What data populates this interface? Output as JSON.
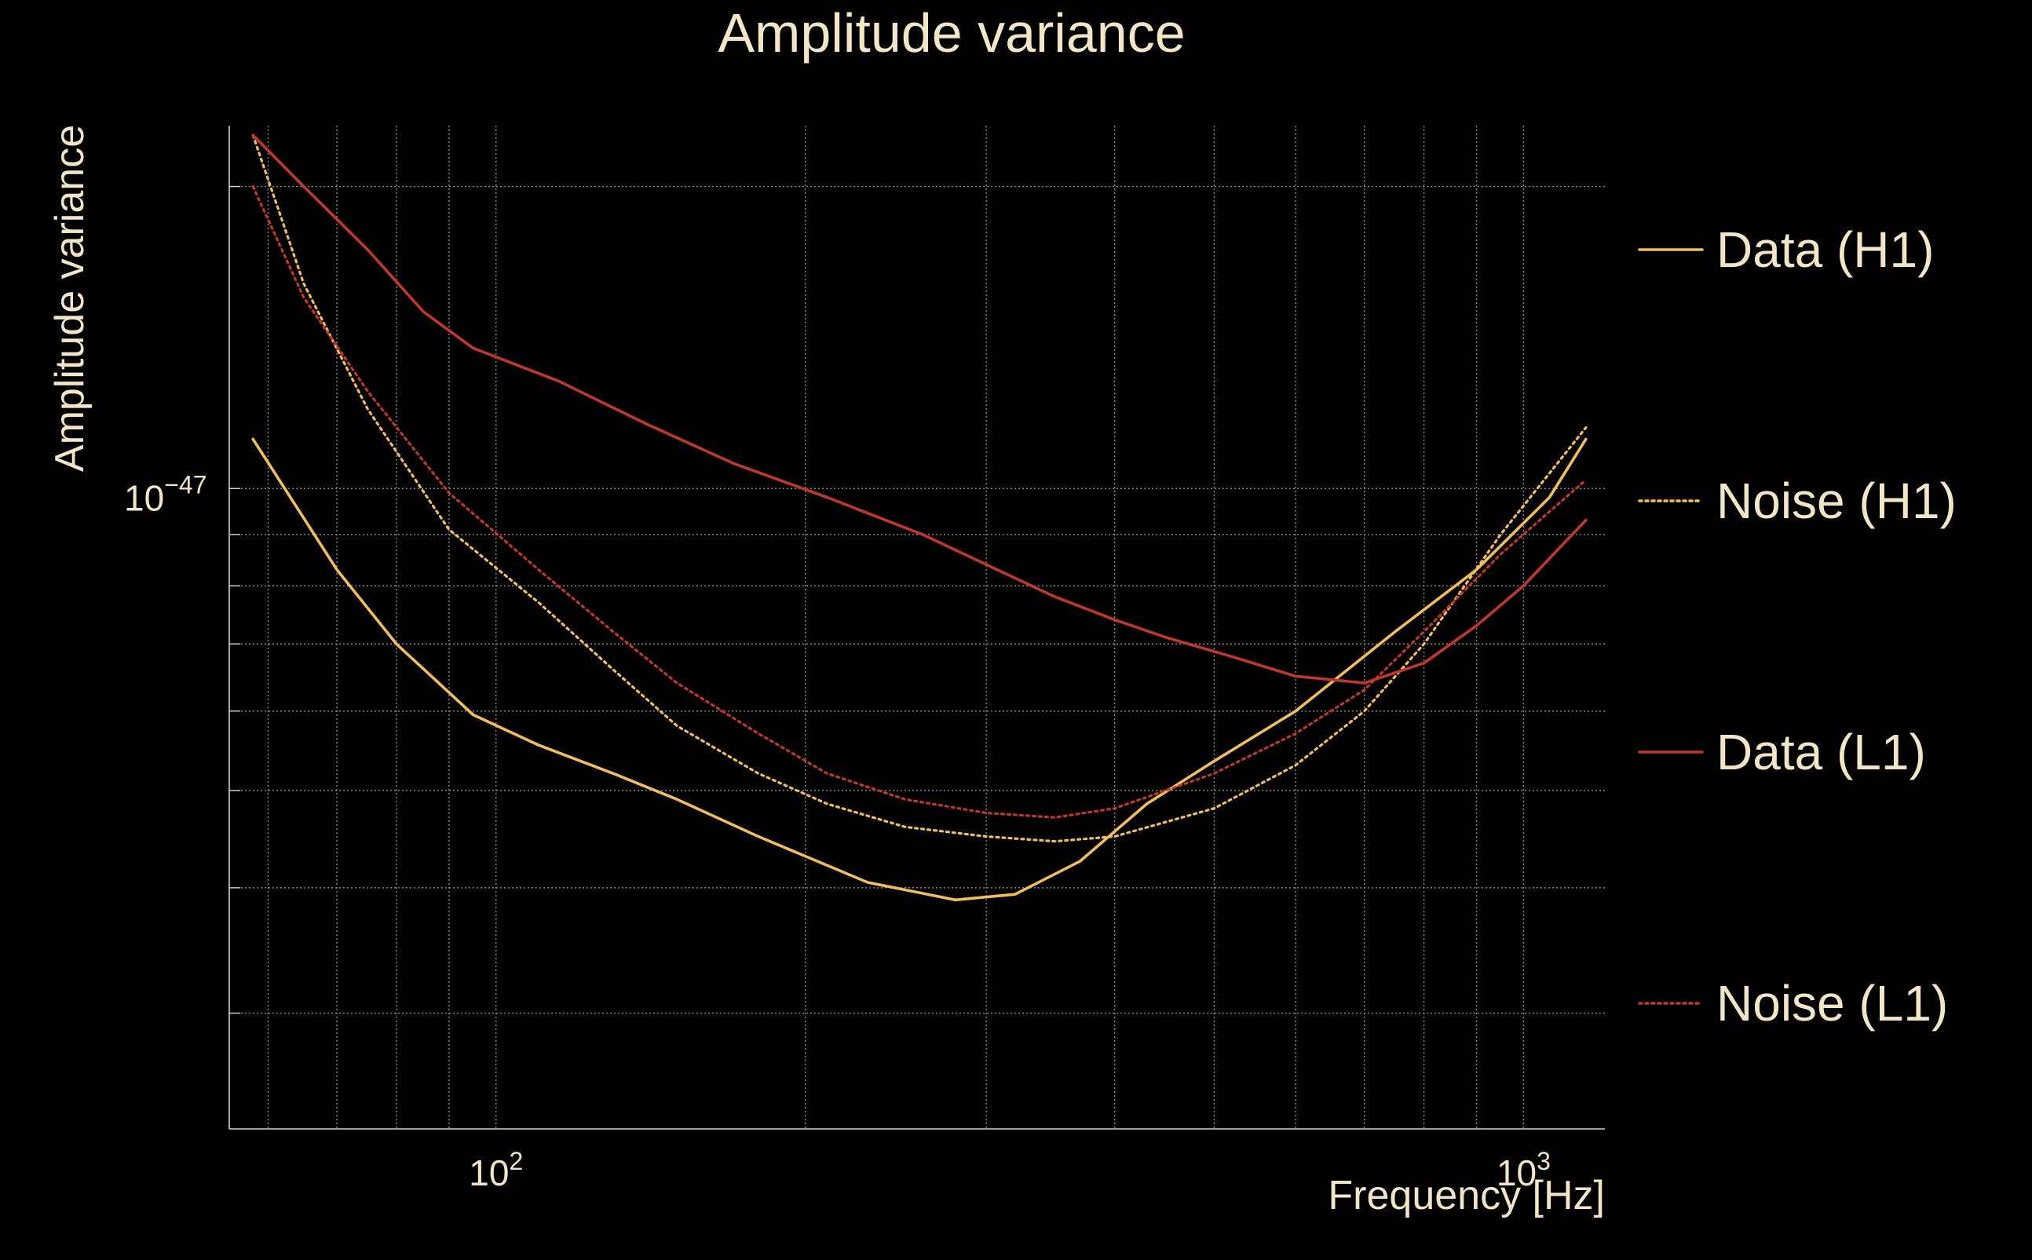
{
  "colors": {
    "background": "#000000",
    "text": "#f3e6c8",
    "grid": "#8a8a8a",
    "h1": "#f2be5c",
    "l1": "#c0382b"
  },
  "chart_data": {
    "type": "line",
    "title": "Amplitude variance",
    "xlabel": "Frequency [Hz]",
    "ylabel": "Amplitude variance",
    "xscale": "log",
    "yscale": "log",
    "xlim": [
      55,
      1200
    ],
    "ylim": [
      2.3e-48,
      2.3e-47
    ],
    "grid": true,
    "legend_position": "right",
    "x_ticks": [
      {
        "value": 100,
        "base": "10",
        "exp": "2"
      },
      {
        "value": 1000,
        "base": "10",
        "exp": "3"
      }
    ],
    "y_ticks": [
      {
        "value": 1e-47,
        "base": "10",
        "exp": "−47"
      }
    ],
    "series": [
      {
        "name": "Data (H1)",
        "color": "#f2be5c",
        "style": "solid",
        "x": [
          58,
          70,
          80,
          95,
          110,
          130,
          150,
          180,
          230,
          280,
          320,
          370,
          430,
          500,
          600,
          750
        ],
        "y": [
          1.12e-47,
          8.3e-48,
          7e-48,
          5.95e-48,
          5.55e-48,
          5.2e-48,
          4.9e-48,
          4.5e-48,
          4.05e-48,
          3.89e-48,
          3.94e-48,
          4.25e-48,
          4.85e-48,
          5.35e-48,
          6e-48,
          7.2e-48
        ],
        "x_ext": [
          900,
          1060,
          1150
        ],
        "y_ext": [
          8.3e-48,
          9.8e-48,
          1.12e-47
        ]
      },
      {
        "name": "Noise (H1)",
        "color": "#f2be5c",
        "style": "dotted",
        "x": [
          58,
          65,
          75,
          90,
          110,
          130,
          150,
          180,
          210,
          250,
          300,
          350,
          400,
          500,
          600,
          700,
          800,
          950,
          1150
        ],
        "y": [
          2.25e-47,
          1.6e-47,
          1.2e-47,
          9.1e-48,
          7.7e-48,
          6.6e-48,
          5.8e-48,
          5.2e-48,
          4.85e-48,
          4.6e-48,
          4.5e-48,
          4.45e-48,
          4.5e-48,
          4.8e-48,
          5.3e-48,
          6e-48,
          7e-48,
          9e-48,
          1.15e-47
        ]
      },
      {
        "name": "Data (L1)",
        "color": "#c0382b",
        "style": "solid",
        "x": [
          58,
          65,
          75,
          85,
          95,
          115,
          140,
          170,
          210,
          260,
          300,
          350,
          400,
          450,
          520,
          600,
          700,
          800,
          900,
          1000,
          1150
        ],
        "y": [
          2.25e-47,
          2e-47,
          1.73e-47,
          1.5e-47,
          1.38e-47,
          1.28e-47,
          1.16e-47,
          1.06e-47,
          9.8e-48,
          9e-48,
          8.4e-48,
          7.8e-48,
          7.4e-48,
          7.1e-48,
          6.8e-48,
          6.5e-48,
          6.4e-48,
          6.7e-48,
          7.3e-48,
          8e-48,
          9.3e-48
        ]
      },
      {
        "name": "Noise (L1)",
        "color": "#c0382b",
        "style": "dotted",
        "x": [
          58,
          65,
          75,
          90,
          110,
          130,
          150,
          180,
          210,
          250,
          300,
          350,
          400,
          500,
          600,
          700,
          800,
          950,
          1150
        ],
        "y": [
          2e-47,
          1.55e-47,
          1.25e-47,
          9.9e-48,
          8.3e-48,
          7.2e-48,
          6.4e-48,
          5.7e-48,
          5.2e-48,
          4.9e-48,
          4.75e-48,
          4.7e-48,
          4.8e-48,
          5.2e-48,
          5.7e-48,
          6.3e-48,
          7.2e-48,
          8.6e-48,
          1.02e-47
        ]
      }
    ]
  }
}
